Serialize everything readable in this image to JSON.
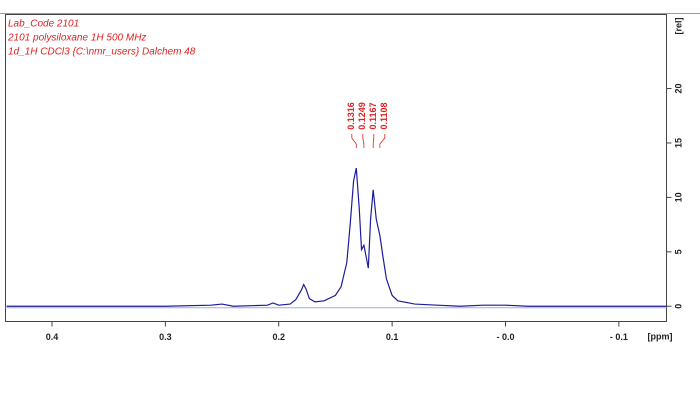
{
  "chart_data": {
    "type": "line",
    "header_lines": [
      "Lab_Code 2101",
      "2101 polysiloxane 1H 500 MHz",
      "1d_1H CDCl3 {C:\\nmr_users} Dalchem 48"
    ],
    "xlabel": "[ppm]",
    "ylabel": "[rel]",
    "x": [
      0.44,
      0.3,
      0.26,
      0.25,
      0.24,
      0.21,
      0.205,
      0.2,
      0.19,
      0.185,
      0.18,
      0.178,
      0.176,
      0.173,
      0.168,
      0.16,
      0.15,
      0.145,
      0.14,
      0.137,
      0.134,
      0.1316,
      0.129,
      0.127,
      0.1249,
      0.123,
      0.121,
      0.119,
      0.1167,
      0.114,
      0.1108,
      0.108,
      0.105,
      0.1,
      0.095,
      0.08,
      0.06,
      0.04,
      0.02,
      0.0,
      -0.02,
      -0.142
    ],
    "y": [
      0,
      0,
      0.1,
      0.2,
      0,
      0.1,
      0.3,
      0.1,
      0.2,
      0.6,
      1.5,
      2.0,
      1.6,
      0.7,
      0.4,
      0.5,
      1.0,
      1.8,
      4.0,
      7.5,
      11.5,
      12.7,
      9,
      5.2,
      5.6,
      4.6,
      3.5,
      8,
      10.7,
      8,
      6.5,
      4.5,
      2.5,
      1.0,
      0.5,
      0.2,
      0.1,
      0,
      0.1,
      0.1,
      0,
      0
    ],
    "color": "#1c1c9c",
    "peak_labels": [
      0.1316,
      0.1249,
      0.1167,
      0.1108
    ],
    "xlim": [
      0.441,
      -0.142
    ],
    "ylim": [
      -1.4,
      26.8
    ],
    "xticks": [
      0.4,
      0.3,
      0.2,
      0.1,
      {
        "value": 0,
        "label": "- 0.0"
      },
      {
        "value": -0.1,
        "label": "- 0.1"
      }
    ],
    "yticks": [
      0,
      5,
      10,
      15,
      20
    ]
  }
}
